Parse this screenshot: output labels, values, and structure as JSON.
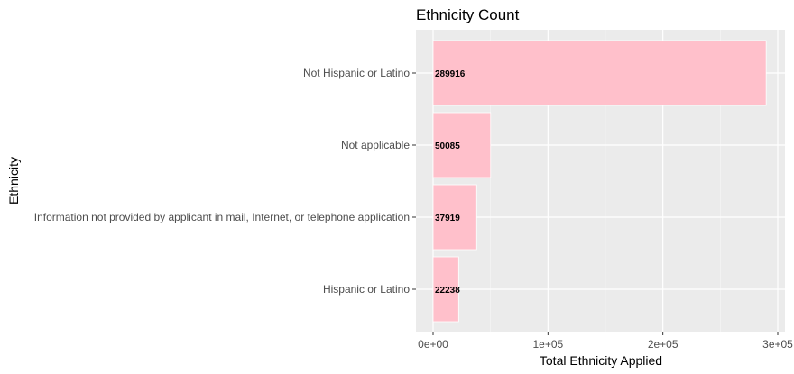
{
  "chart_data": {
    "type": "bar",
    "orientation": "horizontal",
    "title": "Ethnicity Count",
    "xlabel": "Total Ethnicity Applied",
    "ylabel": "Ethnicity",
    "categories": [
      "Not Hispanic or Latino",
      "Not applicable",
      "Information not provided by applicant in mail, Internet, or telephone application",
      "Hispanic or Latino"
    ],
    "values": [
      289916,
      50085,
      37919,
      22238
    ],
    "data_labels": [
      "289916",
      "50085",
      "37919",
      "22238"
    ],
    "xlim": [
      0,
      300000
    ],
    "xticks": [
      0,
      100000,
      200000,
      300000
    ],
    "xtick_labels": [
      "0e+00",
      "1e+05",
      "2e+05",
      "3e+05"
    ],
    "grid": true,
    "legend": "none",
    "colors": {
      "bar_fill": "#ffc0cb",
      "bar_stroke": "#ffffff",
      "panel_bg": "#ebebeb",
      "grid_major": "#ffffff",
      "tick_text": "#4d4d4d"
    }
  }
}
